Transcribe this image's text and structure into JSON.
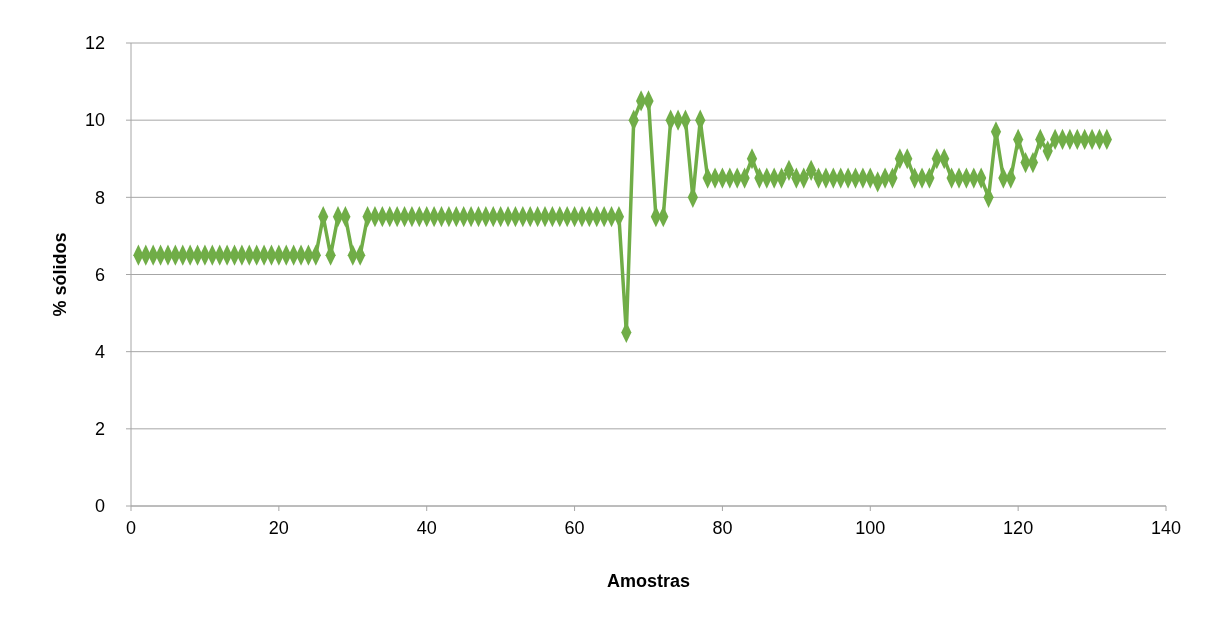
{
  "chart_data": {
    "type": "line",
    "xlabel": "Amostras",
    "ylabel": "% sólidos",
    "xlim": [
      0,
      140
    ],
    "xticks": [
      0,
      20,
      40,
      60,
      80,
      100,
      120,
      140
    ],
    "ylim": [
      0,
      12
    ],
    "yticks": [
      0,
      2,
      4,
      6,
      8,
      10,
      12
    ],
    "grid": "y",
    "marker": "diamond",
    "line_style": "solid",
    "x": [
      1,
      2,
      3,
      4,
      5,
      6,
      7,
      8,
      9,
      10,
      11,
      12,
      13,
      14,
      15,
      16,
      17,
      18,
      19,
      20,
      21,
      22,
      23,
      24,
      25,
      26,
      27,
      28,
      29,
      30,
      31,
      32,
      33,
      34,
      35,
      36,
      37,
      38,
      39,
      40,
      41,
      42,
      43,
      44,
      45,
      46,
      47,
      48,
      49,
      50,
      51,
      52,
      53,
      54,
      55,
      56,
      57,
      58,
      59,
      60,
      61,
      62,
      63,
      64,
      65,
      66,
      67,
      68,
      69,
      70,
      71,
      72,
      73,
      74,
      75,
      76,
      77,
      78,
      79,
      80,
      81,
      82,
      83,
      84,
      85,
      86,
      87,
      88,
      89,
      90,
      91,
      92,
      93,
      94,
      95,
      96,
      97,
      98,
      99,
      100,
      101,
      102,
      103,
      104,
      105,
      106,
      107,
      108,
      109,
      110,
      111,
      112,
      113,
      114,
      115,
      116,
      117,
      118,
      119,
      120,
      121,
      122,
      123,
      124,
      125,
      126,
      127,
      128,
      129,
      130,
      131,
      132
    ],
    "series": [
      {
        "color": "#70ad47",
        "values": [
          6.5,
          6.5,
          6.5,
          6.5,
          6.5,
          6.5,
          6.5,
          6.5,
          6.5,
          6.5,
          6.5,
          6.5,
          6.5,
          6.5,
          6.5,
          6.5,
          6.5,
          6.5,
          6.5,
          6.5,
          6.5,
          6.5,
          6.5,
          6.5,
          6.5,
          7.5,
          6.5,
          7.5,
          7.5,
          6.5,
          6.5,
          7.5,
          7.5,
          7.5,
          7.5,
          7.5,
          7.5,
          7.5,
          7.5,
          7.5,
          7.5,
          7.5,
          7.5,
          7.5,
          7.5,
          7.5,
          7.5,
          7.5,
          7.5,
          7.5,
          7.5,
          7.5,
          7.5,
          7.5,
          7.5,
          7.5,
          7.5,
          7.5,
          7.5,
          7.5,
          7.5,
          7.5,
          7.5,
          7.5,
          7.5,
          7.5,
          4.5,
          10,
          10.5,
          10.5,
          7.5,
          7.5,
          10,
          10,
          10,
          8,
          10,
          8.5,
          8.5,
          8.5,
          8.5,
          8.5,
          8.5,
          9,
          8.5,
          8.5,
          8.5,
          8.5,
          8.7,
          8.5,
          8.5,
          8.7,
          8.5,
          8.5,
          8.5,
          8.5,
          8.5,
          8.5,
          8.5,
          8.5,
          8.4,
          8.5,
          8.5,
          9,
          9,
          8.5,
          8.5,
          8.5,
          9,
          9,
          8.5,
          8.5,
          8.5,
          8.5,
          8.5,
          8,
          9.7,
          8.5,
          8.5,
          9.5,
          8.9,
          8.9,
          9.5,
          9.2,
          9.5,
          9.5,
          9.5,
          9.5,
          9.5,
          9.5,
          9.5,
          9.5
        ]
      }
    ]
  }
}
